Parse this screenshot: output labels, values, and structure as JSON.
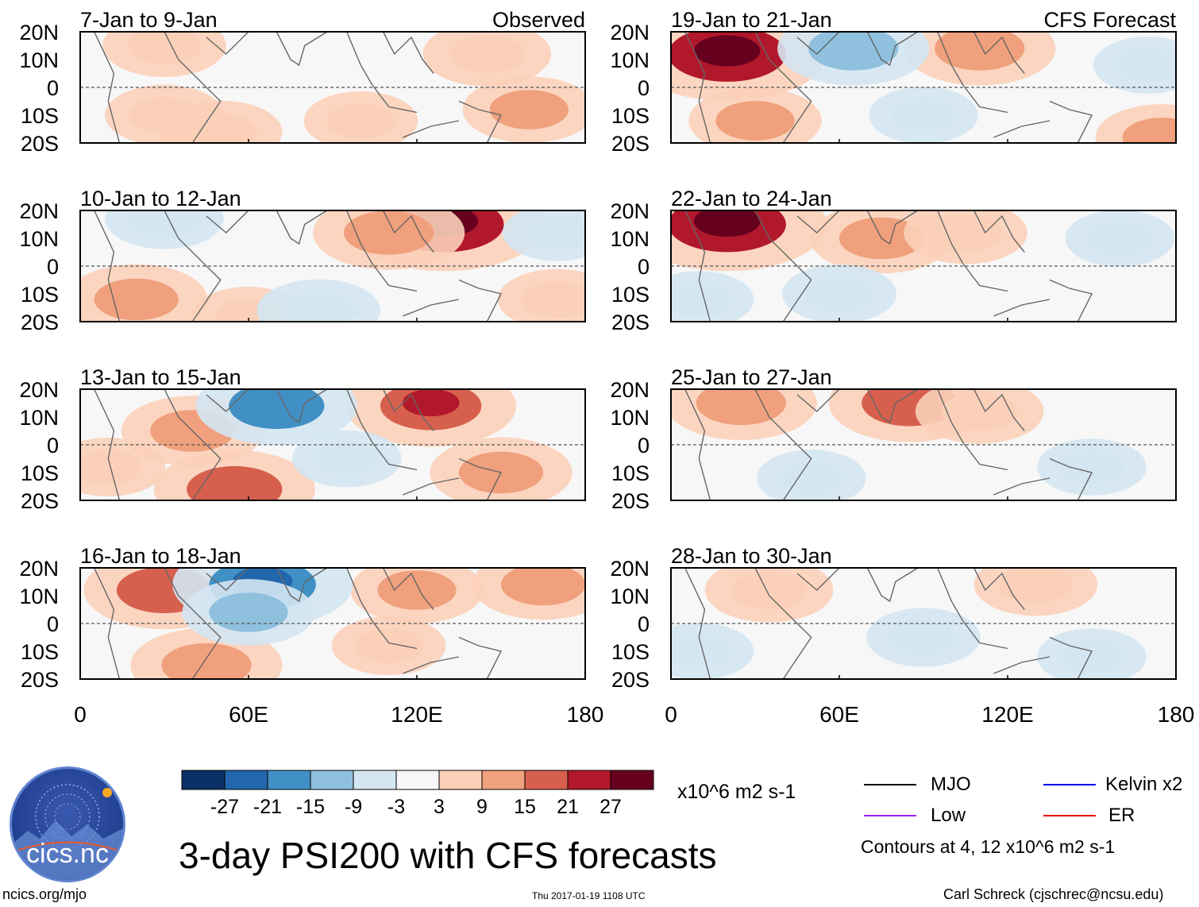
{
  "chart_data": {
    "type": "heatmap",
    "title": "3-day PSI200 with CFS forecasts",
    "variable": "PSI200 anomaly",
    "units": "x10^6 m2 s-1",
    "domain": {
      "lon_range": [
        0,
        180
      ],
      "lat_range": [
        -20,
        20
      ]
    },
    "x_ticks": [
      "0",
      "60E",
      "120E",
      "180"
    ],
    "x_tick_values": [
      0,
      60,
      120,
      180
    ],
    "y_ticks": [
      "20N",
      "10N",
      "0",
      "10S",
      "20S"
    ],
    "y_tick_values": [
      20,
      10,
      0,
      -10,
      -20
    ],
    "columns": [
      {
        "label": "Observed",
        "panels": [
          {
            "period": "7-Jan to 9-Jan",
            "features": [
              {
                "lon": 30,
                "lat": 15,
                "value": 8
              },
              {
                "lon": 145,
                "lat": 12,
                "value": 9
              },
              {
                "lon": 160,
                "lat": -8,
                "value": 10
              },
              {
                "lon": 30,
                "lat": -10,
                "value": 7
              },
              {
                "lon": 50,
                "lat": -16,
                "value": 8
              },
              {
                "lon": 100,
                "lat": -12,
                "value": 6
              }
            ]
          },
          {
            "period": "10-Jan to 12-Jan",
            "features": [
              {
                "lon": 130,
                "lat": 15,
                "value": 24
              },
              {
                "lon": 110,
                "lat": 12,
                "value": 14
              },
              {
                "lon": 20,
                "lat": -12,
                "value": 12
              },
              {
                "lon": 60,
                "lat": -18,
                "value": 6
              },
              {
                "lon": 30,
                "lat": 17,
                "value": -7
              },
              {
                "lon": 85,
                "lat": -16,
                "value": -8
              },
              {
                "lon": 170,
                "lat": 12,
                "value": -5
              },
              {
                "lon": 170,
                "lat": -12,
                "value": 7
              }
            ]
          },
          {
            "period": "13-Jan to 15-Jan",
            "features": [
              {
                "lon": 125,
                "lat": 14,
                "value": 18
              },
              {
                "lon": 40,
                "lat": 5,
                "value": 12
              },
              {
                "lon": 55,
                "lat": -16,
                "value": 16
              },
              {
                "lon": 150,
                "lat": -10,
                "value": 12
              },
              {
                "lon": 70,
                "lat": 14,
                "value": -16
              },
              {
                "lon": 95,
                "lat": -5,
                "value": -5
              },
              {
                "lon": 10,
                "lat": -8,
                "value": 6
              }
            ]
          },
          {
            "period": "16-Jan to 18-Jan",
            "features": [
              {
                "lon": 30,
                "lat": 12,
                "value": 16
              },
              {
                "lon": 45,
                "lat": -15,
                "value": 14
              },
              {
                "lon": 120,
                "lat": 12,
                "value": 10
              },
              {
                "lon": 165,
                "lat": 14,
                "value": 12
              },
              {
                "lon": 65,
                "lat": 14,
                "value": -20
              },
              {
                "lon": 60,
                "lat": 4,
                "value": -10
              },
              {
                "lon": 110,
                "lat": -8,
                "value": 6
              }
            ]
          }
        ]
      },
      {
        "label": "CFS Forecast",
        "panels": [
          {
            "period": "19-Jan to 21-Jan",
            "features": [
              {
                "lon": 20,
                "lat": 12,
                "value": 24
              },
              {
                "lon": 110,
                "lat": 14,
                "value": 14
              },
              {
                "lon": 30,
                "lat": -12,
                "value": 10
              },
              {
                "lon": 65,
                "lat": 14,
                "value": -14
              },
              {
                "lon": 90,
                "lat": -10,
                "value": -5
              },
              {
                "lon": 170,
                "lat": 8,
                "value": -5
              },
              {
                "lon": 175,
                "lat": -18,
                "value": 10
              }
            ]
          },
          {
            "period": "22-Jan to 24-Jan",
            "features": [
              {
                "lon": 20,
                "lat": 15,
                "value": 24
              },
              {
                "lon": 75,
                "lat": 10,
                "value": 12
              },
              {
                "lon": 105,
                "lat": 12,
                "value": 8
              },
              {
                "lon": 60,
                "lat": -10,
                "value": -6
              },
              {
                "lon": 160,
                "lat": 10,
                "value": -5
              },
              {
                "lon": 10,
                "lat": -12,
                "value": -5
              }
            ]
          },
          {
            "period": "25-Jan to 27-Jan",
            "features": [
              {
                "lon": 25,
                "lat": 15,
                "value": 14
              },
              {
                "lon": 85,
                "lat": 15,
                "value": 16
              },
              {
                "lon": 110,
                "lat": 12,
                "value": 9
              },
              {
                "lon": 50,
                "lat": -12,
                "value": -5
              },
              {
                "lon": 150,
                "lat": -8,
                "value": -5
              }
            ]
          },
          {
            "period": "28-Jan to 30-Jan",
            "features": [
              {
                "lon": 35,
                "lat": 12,
                "value": 9
              },
              {
                "lon": 130,
                "lat": 14,
                "value": 8
              },
              {
                "lon": 90,
                "lat": -5,
                "value": -6
              },
              {
                "lon": 150,
                "lat": -12,
                "value": -5
              },
              {
                "lon": 10,
                "lat": -10,
                "value": -5
              }
            ]
          }
        ]
      }
    ],
    "colorbar": {
      "labels": [
        "-27",
        "-21",
        "-15",
        "-9",
        "-3",
        "3",
        "9",
        "15",
        "21",
        "27"
      ],
      "colors": [
        "#0b3166",
        "#2267ad",
        "#4190c5",
        "#8fc1de",
        "#d4e6f2",
        "#f7f7f7",
        "#fbd0b9",
        "#f0a07c",
        "#d6604d",
        "#b2182b",
        "#67001f"
      ]
    },
    "contour_legend": [
      {
        "name": "MJO",
        "color": "#000000"
      },
      {
        "name": "Kelvin x2",
        "color": "#0000ee"
      },
      {
        "name": "Low",
        "color": "#a020f0"
      },
      {
        "name": "ER",
        "color": "#ee0000"
      }
    ],
    "contour_note": "Contours at 4, 12 x10^6 m2 s-1"
  },
  "footer": {
    "logo_text": "cics.nc",
    "website": "ncics.org/mjo",
    "timestamp": "Thu 2017-01-19 1108 UTC",
    "author": "Carl Schreck (cjschrec@ncsu.edu)"
  }
}
